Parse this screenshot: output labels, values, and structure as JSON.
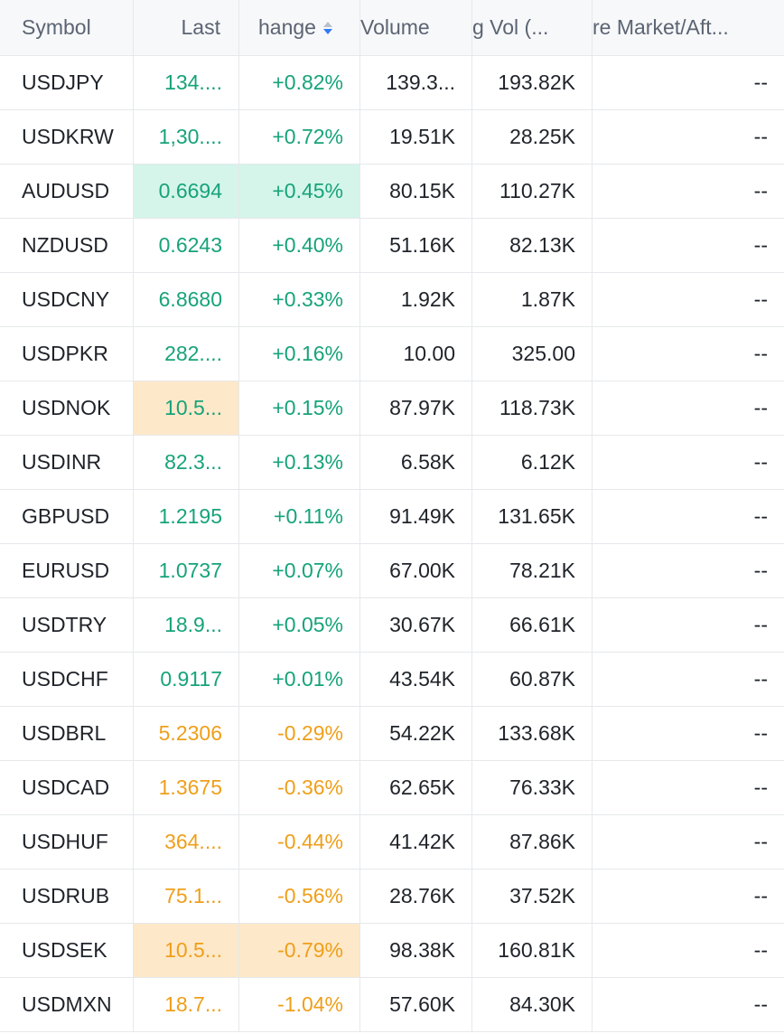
{
  "columns": {
    "symbol": "Symbol",
    "last": "Last",
    "change": "hange",
    "volume": "Volume",
    "avg_vol": "g Vol (...",
    "pre_market": "re Market/Aft..."
  },
  "colors": {
    "up": "#17a37a",
    "down": "#ef9f1a",
    "flash_up_bg": "#d5f5ea",
    "flash_down_bg": "#fde8c9",
    "sort_active": "#2f7bf6"
  },
  "rows": [
    {
      "symbol": "USDJPY",
      "last": "134....",
      "change": "+0.82%",
      "volume": "139.3...",
      "avg_vol": "193.82K",
      "pre_market": "--",
      "dir": "up",
      "last_hl": "",
      "change_hl": ""
    },
    {
      "symbol": "USDKRW",
      "last": "1,30....",
      "change": "+0.72%",
      "volume": "19.51K",
      "avg_vol": "28.25K",
      "pre_market": "--",
      "dir": "up",
      "last_hl": "",
      "change_hl": ""
    },
    {
      "symbol": "AUDUSD",
      "last": "0.6694",
      "change": "+0.45%",
      "volume": "80.15K",
      "avg_vol": "110.27K",
      "pre_market": "--",
      "dir": "up",
      "last_hl": "green",
      "change_hl": "green"
    },
    {
      "symbol": "NZDUSD",
      "last": "0.6243",
      "change": "+0.40%",
      "volume": "51.16K",
      "avg_vol": "82.13K",
      "pre_market": "--",
      "dir": "up",
      "last_hl": "",
      "change_hl": ""
    },
    {
      "symbol": "USDCNY",
      "last": "6.8680",
      "change": "+0.33%",
      "volume": "1.92K",
      "avg_vol": "1.87K",
      "pre_market": "--",
      "dir": "up",
      "last_hl": "",
      "change_hl": ""
    },
    {
      "symbol": "USDPKR",
      "last": "282....",
      "change": "+0.16%",
      "volume": "10.00",
      "avg_vol": "325.00",
      "pre_market": "--",
      "dir": "up",
      "last_hl": "",
      "change_hl": ""
    },
    {
      "symbol": "USDNOK",
      "last": "10.5...",
      "change": "+0.15%",
      "volume": "87.97K",
      "avg_vol": "118.73K",
      "pre_market": "--",
      "dir": "up",
      "last_hl": "orange",
      "change_hl": ""
    },
    {
      "symbol": "USDINR",
      "last": "82.3...",
      "change": "+0.13%",
      "volume": "6.58K",
      "avg_vol": "6.12K",
      "pre_market": "--",
      "dir": "up",
      "last_hl": "",
      "change_hl": ""
    },
    {
      "symbol": "GBPUSD",
      "last": "1.2195",
      "change": "+0.11%",
      "volume": "91.49K",
      "avg_vol": "131.65K",
      "pre_market": "--",
      "dir": "up",
      "last_hl": "",
      "change_hl": ""
    },
    {
      "symbol": "EURUSD",
      "last": "1.0737",
      "change": "+0.07%",
      "volume": "67.00K",
      "avg_vol": "78.21K",
      "pre_market": "--",
      "dir": "up",
      "last_hl": "",
      "change_hl": ""
    },
    {
      "symbol": "USDTRY",
      "last": "18.9...",
      "change": "+0.05%",
      "volume": "30.67K",
      "avg_vol": "66.61K",
      "pre_market": "--",
      "dir": "up",
      "last_hl": "",
      "change_hl": ""
    },
    {
      "symbol": "USDCHF",
      "last": "0.9117",
      "change": "+0.01%",
      "volume": "43.54K",
      "avg_vol": "60.87K",
      "pre_market": "--",
      "dir": "up",
      "last_hl": "",
      "change_hl": ""
    },
    {
      "symbol": "USDBRL",
      "last": "5.2306",
      "change": "-0.29%",
      "volume": "54.22K",
      "avg_vol": "133.68K",
      "pre_market": "--",
      "dir": "down",
      "last_hl": "",
      "change_hl": ""
    },
    {
      "symbol": "USDCAD",
      "last": "1.3675",
      "change": "-0.36%",
      "volume": "62.65K",
      "avg_vol": "76.33K",
      "pre_market": "--",
      "dir": "down",
      "last_hl": "",
      "change_hl": ""
    },
    {
      "symbol": "USDHUF",
      "last": "364....",
      "change": "-0.44%",
      "volume": "41.42K",
      "avg_vol": "87.86K",
      "pre_market": "--",
      "dir": "down",
      "last_hl": "",
      "change_hl": ""
    },
    {
      "symbol": "USDRUB",
      "last": "75.1...",
      "change": "-0.56%",
      "volume": "28.76K",
      "avg_vol": "37.52K",
      "pre_market": "--",
      "dir": "down",
      "last_hl": "",
      "change_hl": ""
    },
    {
      "symbol": "USDSEK",
      "last": "10.5...",
      "change": "-0.79%",
      "volume": "98.38K",
      "avg_vol": "160.81K",
      "pre_market": "--",
      "dir": "down",
      "last_hl": "orange",
      "change_hl": "orange"
    },
    {
      "symbol": "USDMXN",
      "last": "18.7...",
      "change": "-1.04%",
      "volume": "57.60K",
      "avg_vol": "84.30K",
      "pre_market": "--",
      "dir": "down",
      "last_hl": "",
      "change_hl": ""
    }
  ]
}
